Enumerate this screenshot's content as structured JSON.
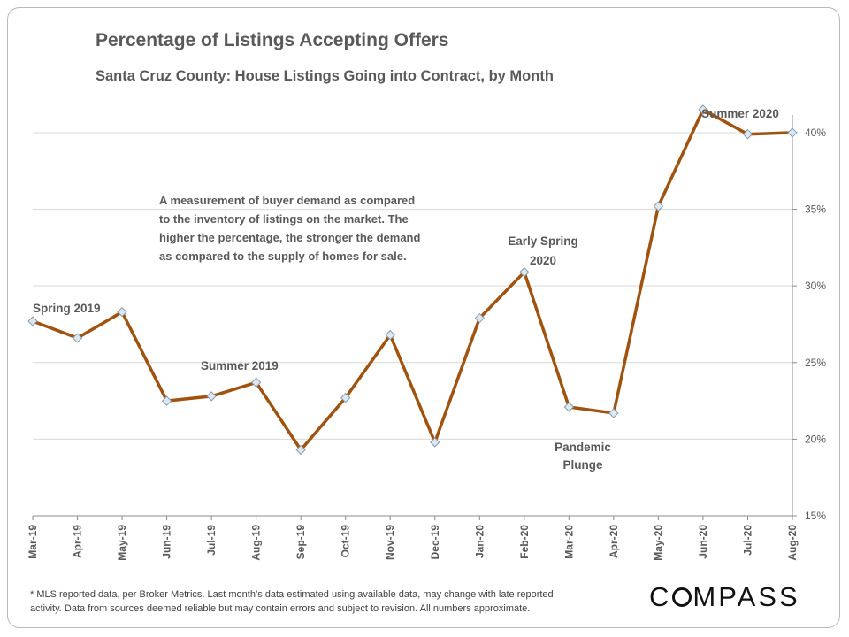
{
  "chart_data": {
    "type": "line",
    "title": "Percentage of Listings Accepting Offers",
    "subtitle": "Santa Cruz County: House Listings Going into Contract, by Month",
    "categories": [
      "Mar-19",
      "Apr-19",
      "May-19",
      "Jun-19",
      "Jul-19",
      "Aug-19",
      "Sep-19",
      "Oct-19",
      "Nov-19",
      "Dec-19",
      "Jan-20",
      "Feb-20",
      "Mar-20",
      "Apr-20",
      "May-20",
      "Jun-20",
      "Jul-20",
      "Aug-20"
    ],
    "series": [
      {
        "values": [
          27.7,
          26.6,
          28.3,
          22.5,
          22.8,
          23.7,
          19.3,
          22.7,
          26.8,
          19.8,
          27.9,
          30.9,
          22.1,
          21.7,
          35.2,
          41.5,
          39.9,
          40.0
        ]
      }
    ],
    "ylim": [
      15,
      43
    ],
    "yticks": [
      15,
      20,
      25,
      30,
      35,
      40
    ],
    "ytick_labels": [
      "15%",
      "20%",
      "25%",
      "30%",
      "35%",
      "40%"
    ],
    "y_axis_side": "right",
    "grid": true,
    "line_color": "#a0520f",
    "marker_fill": "#dbe9f5",
    "annotations": [
      {
        "id": "spring-2019",
        "lines": [
          "Spring 2019"
        ]
      },
      {
        "id": "summer-2019",
        "lines": [
          "Summer 2019"
        ]
      },
      {
        "id": "early-spring-2020",
        "lines": [
          "Early Spring",
          "2020"
        ]
      },
      {
        "id": "pandemic-plunge",
        "lines": [
          "Pandemic",
          "Plunge"
        ]
      },
      {
        "id": "summer-2020",
        "lines": [
          "Summer 2020"
        ]
      },
      {
        "id": "description",
        "lines": [
          "A measurement of buyer demand as compared",
          "to the inventory of listings on the market. The",
          "higher the percentage, the stronger the demand",
          "as compared to the supply of homes for sale."
        ]
      }
    ]
  },
  "footnote": {
    "line1": "* MLS reported data, per Broker Metrics. Last month’s data estimated using available data, may change with late reported",
    "line2": "activity. Data from sources deemed reliable but may contain errors and subject to revision. All numbers approximate."
  },
  "brand": {
    "logo_text_before": "C",
    "logo_text_after": "MPASS"
  }
}
